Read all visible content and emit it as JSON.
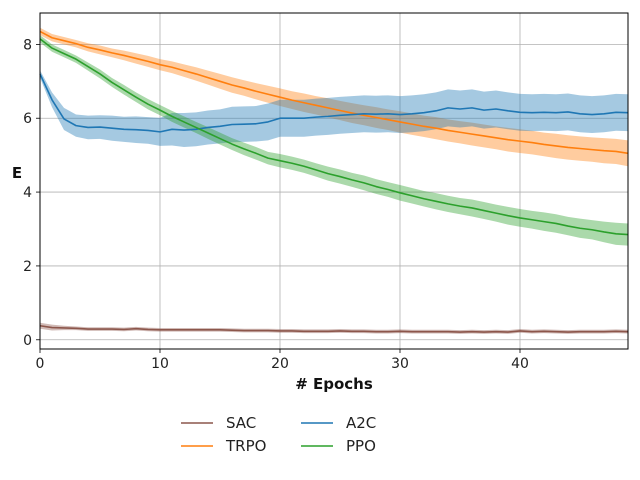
{
  "chart_data": {
    "type": "line",
    "xlabel": "# Epochs",
    "ylabel": "E",
    "xlim": [
      0,
      49
    ],
    "ylim": [
      -0.25,
      8.85
    ],
    "xticks": [
      0,
      10,
      20,
      30,
      40
    ],
    "yticks": [
      0,
      2,
      4,
      6,
      8
    ],
    "grid": true,
    "legend_position": "bottom-center",
    "x": [
      0,
      1,
      2,
      3,
      4,
      5,
      6,
      7,
      8,
      9,
      10,
      11,
      12,
      13,
      14,
      15,
      16,
      17,
      18,
      19,
      20,
      21,
      22,
      23,
      24,
      25,
      26,
      27,
      28,
      29,
      30,
      31,
      32,
      33,
      34,
      35,
      36,
      37,
      38,
      39,
      40,
      41,
      42,
      43,
      44,
      45,
      46,
      47,
      48,
      49
    ],
    "series": [
      {
        "name": "SAC",
        "color": "#8c564b",
        "values": [
          0.38,
          0.33,
          0.32,
          0.31,
          0.29,
          0.29,
          0.29,
          0.28,
          0.3,
          0.28,
          0.27,
          0.27,
          0.27,
          0.27,
          0.27,
          0.27,
          0.26,
          0.25,
          0.25,
          0.25,
          0.24,
          0.24,
          0.23,
          0.23,
          0.23,
          0.24,
          0.23,
          0.23,
          0.22,
          0.22,
          0.23,
          0.22,
          0.22,
          0.22,
          0.22,
          0.21,
          0.22,
          0.21,
          0.22,
          0.21,
          0.24,
          0.22,
          0.23,
          0.22,
          0.21,
          0.22,
          0.22,
          0.22,
          0.23,
          0.22
        ],
        "band": [
          0.08,
          0.08,
          0.06,
          0.05,
          0.05,
          0.05,
          0.05,
          0.05,
          0.05,
          0.05,
          0.05,
          0.05,
          0.05,
          0.05,
          0.05,
          0.05,
          0.05,
          0.05,
          0.05,
          0.05,
          0.05,
          0.05,
          0.05,
          0.05,
          0.05,
          0.05,
          0.05,
          0.05,
          0.05,
          0.05,
          0.05,
          0.05,
          0.05,
          0.05,
          0.05,
          0.05,
          0.05,
          0.05,
          0.05,
          0.05,
          0.05,
          0.05,
          0.05,
          0.05,
          0.05,
          0.05,
          0.05,
          0.05,
          0.05,
          0.05
        ]
      },
      {
        "name": "TRPO",
        "color": "#ff7f0e",
        "values": [
          8.35,
          8.18,
          8.1,
          8.02,
          7.92,
          7.85,
          7.77,
          7.7,
          7.62,
          7.54,
          7.45,
          7.38,
          7.29,
          7.2,
          7.1,
          7.0,
          6.9,
          6.82,
          6.73,
          6.65,
          6.57,
          6.49,
          6.42,
          6.35,
          6.28,
          6.21,
          6.14,
          6.08,
          6.02,
          5.96,
          5.9,
          5.84,
          5.78,
          5.73,
          5.67,
          5.62,
          5.57,
          5.52,
          5.47,
          5.42,
          5.38,
          5.34,
          5.29,
          5.25,
          5.21,
          5.18,
          5.15,
          5.12,
          5.1,
          5.05
        ],
        "band": [
          0.1,
          0.1,
          0.1,
          0.1,
          0.11,
          0.12,
          0.12,
          0.13,
          0.14,
          0.15,
          0.15,
          0.16,
          0.17,
          0.18,
          0.19,
          0.2,
          0.21,
          0.21,
          0.22,
          0.23,
          0.24,
          0.24,
          0.25,
          0.25,
          0.26,
          0.26,
          0.27,
          0.27,
          0.28,
          0.28,
          0.29,
          0.29,
          0.29,
          0.3,
          0.3,
          0.3,
          0.31,
          0.31,
          0.31,
          0.32,
          0.32,
          0.32,
          0.32,
          0.33,
          0.33,
          0.33,
          0.33,
          0.34,
          0.34,
          0.35
        ]
      },
      {
        "name": "A2C",
        "color": "#1f77b4",
        "values": [
          7.2,
          6.5,
          5.98,
          5.8,
          5.75,
          5.76,
          5.73,
          5.7,
          5.69,
          5.67,
          5.63,
          5.7,
          5.68,
          5.7,
          5.75,
          5.78,
          5.83,
          5.84,
          5.85,
          5.9,
          6.0,
          6.0,
          6.0,
          6.03,
          6.05,
          6.08,
          6.1,
          6.12,
          6.11,
          6.12,
          6.1,
          6.12,
          6.15,
          6.2,
          6.28,
          6.25,
          6.28,
          6.22,
          6.25,
          6.2,
          6.16,
          6.15,
          6.16,
          6.15,
          6.17,
          6.12,
          6.1,
          6.12,
          6.16,
          6.15
        ],
        "band": [
          0.1,
          0.2,
          0.3,
          0.3,
          0.32,
          0.32,
          0.34,
          0.34,
          0.36,
          0.36,
          0.38,
          0.44,
          0.46,
          0.46,
          0.46,
          0.46,
          0.48,
          0.48,
          0.48,
          0.5,
          0.5,
          0.5,
          0.5,
          0.5,
          0.5,
          0.5,
          0.5,
          0.5,
          0.5,
          0.5,
          0.5,
          0.5,
          0.5,
          0.5,
          0.5,
          0.5,
          0.5,
          0.5,
          0.5,
          0.5,
          0.5,
          0.5,
          0.5,
          0.5,
          0.5,
          0.5,
          0.5,
          0.5,
          0.5,
          0.5
        ]
      },
      {
        "name": "PPO",
        "color": "#2ca02c",
        "values": [
          8.15,
          7.9,
          7.75,
          7.6,
          7.4,
          7.2,
          6.97,
          6.77,
          6.57,
          6.38,
          6.22,
          6.05,
          5.9,
          5.75,
          5.6,
          5.45,
          5.3,
          5.17,
          5.05,
          4.92,
          4.85,
          4.78,
          4.7,
          4.6,
          4.5,
          4.42,
          4.33,
          4.25,
          4.15,
          4.07,
          3.98,
          3.9,
          3.82,
          3.75,
          3.68,
          3.62,
          3.57,
          3.5,
          3.43,
          3.36,
          3.3,
          3.25,
          3.2,
          3.15,
          3.08,
          3.02,
          2.98,
          2.92,
          2.87,
          2.85
        ],
        "band": [
          0.1,
          0.1,
          0.1,
          0.1,
          0.11,
          0.12,
          0.12,
          0.13,
          0.13,
          0.14,
          0.14,
          0.15,
          0.15,
          0.15,
          0.16,
          0.16,
          0.16,
          0.17,
          0.17,
          0.17,
          0.18,
          0.18,
          0.18,
          0.18,
          0.19,
          0.19,
          0.19,
          0.2,
          0.2,
          0.2,
          0.21,
          0.21,
          0.21,
          0.22,
          0.22,
          0.22,
          0.23,
          0.23,
          0.23,
          0.24,
          0.24,
          0.24,
          0.25,
          0.25,
          0.25,
          0.26,
          0.26,
          0.28,
          0.3,
          0.3
        ]
      }
    ],
    "legend_order": [
      "SAC",
      "TRPO",
      "A2C",
      "PPO"
    ]
  }
}
